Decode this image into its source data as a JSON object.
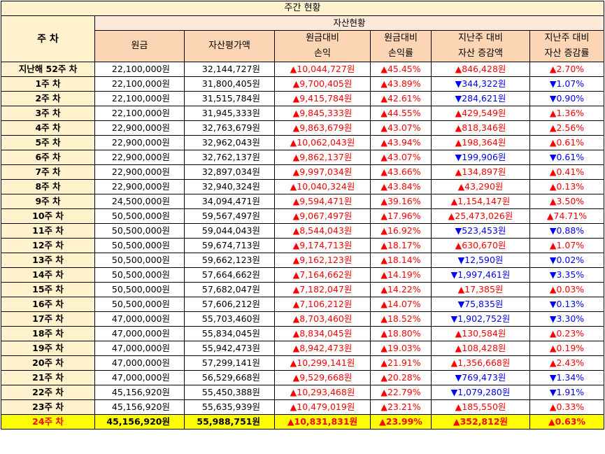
{
  "title": "주간 현황",
  "header": {
    "week_label": "주 차",
    "group_label": "자산현황",
    "columns": [
      {
        "line1": "원금",
        "line2": ""
      },
      {
        "line1": "자산평가액",
        "line2": ""
      },
      {
        "line1": "원금대비",
        "line2": "손익"
      },
      {
        "line1": "원금대비",
        "line2": "손익률"
      },
      {
        "line1": "지난주 대비",
        "line2": "자산 증감액"
      },
      {
        "line1": "지난주 대비",
        "line2": "자산 증감률"
      }
    ]
  },
  "rows": [
    {
      "week": "지난해 52주 차",
      "principal": "22,100,000원",
      "value": "32,144,727원",
      "pl": "▲10,044,727원",
      "plr": "▲45.45%",
      "chg": "▲846,428원",
      "chgr": "▲2.70%",
      "pl_dir": "up",
      "chg_dir": "up"
    },
    {
      "week": "1주 차",
      "principal": "22,100,000원",
      "value": "31,800,405원",
      "pl": "▲9,700,405원",
      "plr": "▲43.89%",
      "chg": "▼344,322원",
      "chgr": "▼1.07%",
      "pl_dir": "up",
      "chg_dir": "down"
    },
    {
      "week": "2주 차",
      "principal": "22,100,000원",
      "value": "31,515,784원",
      "pl": "▲9,415,784원",
      "plr": "▲42.61%",
      "chg": "▼284,621원",
      "chgr": "▼0.90%",
      "pl_dir": "up",
      "chg_dir": "down"
    },
    {
      "week": "3주 차",
      "principal": "22,100,000원",
      "value": "31,945,333원",
      "pl": "▲9,845,333원",
      "plr": "▲44.55%",
      "chg": "▲429,549원",
      "chgr": "▲1.36%",
      "pl_dir": "up",
      "chg_dir": "up"
    },
    {
      "week": "4주 차",
      "principal": "22,900,000원",
      "value": "32,763,679원",
      "pl": "▲9,863,679원",
      "plr": "▲43.07%",
      "chg": "▲818,346원",
      "chgr": "▲2.56%",
      "pl_dir": "up",
      "chg_dir": "up"
    },
    {
      "week": "5주 차",
      "principal": "22,900,000원",
      "value": "32,962,043원",
      "pl": "▲10,062,043원",
      "plr": "▲43.94%",
      "chg": "▲198,364원",
      "chgr": "▲0.61%",
      "pl_dir": "up",
      "chg_dir": "up"
    },
    {
      "week": "6주 차",
      "principal": "22,900,000원",
      "value": "32,762,137원",
      "pl": "▲9,862,137원",
      "plr": "▲43.07%",
      "chg": "▼199,906원",
      "chgr": "▼0.61%",
      "pl_dir": "up",
      "chg_dir": "down"
    },
    {
      "week": "7주 차",
      "principal": "22,900,000원",
      "value": "32,897,034원",
      "pl": "▲9,997,034원",
      "plr": "▲43.66%",
      "chg": "▲134,897원",
      "chgr": "▲0.41%",
      "pl_dir": "up",
      "chg_dir": "up"
    },
    {
      "week": "8주 차",
      "principal": "22,900,000원",
      "value": "32,940,324원",
      "pl": "▲10,040,324원",
      "plr": "▲43.84%",
      "chg": "▲43,290원",
      "chgr": "▲0.13%",
      "pl_dir": "up",
      "chg_dir": "up"
    },
    {
      "week": "9주 차",
      "principal": "24,500,000원",
      "value": "34,094,471원",
      "pl": "▲9,594,471원",
      "plr": "▲39.16%",
      "chg": "▲1,154,147원",
      "chgr": "▲3.50%",
      "pl_dir": "up",
      "chg_dir": "up"
    },
    {
      "week": "10주 차",
      "principal": "50,500,000원",
      "value": "59,567,497원",
      "pl": "▲9,067,497원",
      "plr": "▲17.96%",
      "chg": "▲25,473,026원",
      "chgr": "▲74.71%",
      "pl_dir": "up",
      "chg_dir": "up"
    },
    {
      "week": "11주 차",
      "principal": "50,500,000원",
      "value": "59,044,043원",
      "pl": "▲8,544,043원",
      "plr": "▲16.92%",
      "chg": "▼523,453원",
      "chgr": "▼0.88%",
      "pl_dir": "up",
      "chg_dir": "down"
    },
    {
      "week": "12주 차",
      "principal": "50,500,000원",
      "value": "59,674,713원",
      "pl": "▲9,174,713원",
      "plr": "▲18.17%",
      "chg": "▲630,670원",
      "chgr": "▲1.07%",
      "pl_dir": "up",
      "chg_dir": "up"
    },
    {
      "week": "13주 차",
      "principal": "50,500,000원",
      "value": "59,662,123원",
      "pl": "▲9,162,123원",
      "plr": "▲18.14%",
      "chg": "▼12,590원",
      "chgr": "▼0.02%",
      "pl_dir": "up",
      "chg_dir": "down"
    },
    {
      "week": "14주 차",
      "principal": "50,500,000원",
      "value": "57,664,662원",
      "pl": "▲7,164,662원",
      "plr": "▲14.19%",
      "chg": "▼1,997,461원",
      "chgr": "▼3.35%",
      "pl_dir": "up",
      "chg_dir": "down"
    },
    {
      "week": "15주 차",
      "principal": "50,500,000원",
      "value": "57,682,047원",
      "pl": "▲7,182,047원",
      "plr": "▲14.22%",
      "chg": "▲17,385원",
      "chgr": "▲0.03%",
      "pl_dir": "up",
      "chg_dir": "up"
    },
    {
      "week": "16주 차",
      "principal": "50,500,000원",
      "value": "57,606,212원",
      "pl": "▲7,106,212원",
      "plr": "▲14.07%",
      "chg": "▼75,835원",
      "chgr": "▼0.13%",
      "pl_dir": "up",
      "chg_dir": "down"
    },
    {
      "week": "17주 차",
      "principal": "47,000,000원",
      "value": "55,703,460원",
      "pl": "▲8,703,460원",
      "plr": "▲18.52%",
      "chg": "▼1,902,752원",
      "chgr": "▼3.30%",
      "pl_dir": "up",
      "chg_dir": "down"
    },
    {
      "week": "18주 차",
      "principal": "47,000,000원",
      "value": "55,834,045원",
      "pl": "▲8,834,045원",
      "plr": "▲18.80%",
      "chg": "▲130,584원",
      "chgr": "▲0.23%",
      "pl_dir": "up",
      "chg_dir": "up"
    },
    {
      "week": "19주 차",
      "principal": "47,000,000원",
      "value": "55,942,473원",
      "pl": "▲8,942,473원",
      "plr": "▲19.03%",
      "chg": "▲108,428원",
      "chgr": "▲0.19%",
      "pl_dir": "up",
      "chg_dir": "up"
    },
    {
      "week": "20주 차",
      "principal": "47,000,000원",
      "value": "57,299,141원",
      "pl": "▲10,299,141원",
      "plr": "▲21.91%",
      "chg": "▲1,356,668원",
      "chgr": "▲2.43%",
      "pl_dir": "up",
      "chg_dir": "up"
    },
    {
      "week": "21주 차",
      "principal": "47,000,000원",
      "value": "56,529,668원",
      "pl": "▲9,529,668원",
      "plr": "▲20.28%",
      "chg": "▼769,473원",
      "chgr": "▼1.34%",
      "pl_dir": "up",
      "chg_dir": "down"
    },
    {
      "week": "22주 차",
      "principal": "45,156,920원",
      "value": "55,450,388원",
      "pl": "▲10,293,468원",
      "plr": "▲22.79%",
      "chg": "▼1,079,280원",
      "chgr": "▼1.91%",
      "pl_dir": "up",
      "chg_dir": "down"
    },
    {
      "week": "23주 차",
      "principal": "45,156,920원",
      "value": "55,635,939원",
      "pl": "▲10,479,019원",
      "plr": "▲23.21%",
      "chg": "▲185,550원",
      "chgr": "▲0.33%",
      "pl_dir": "up",
      "chg_dir": "up"
    },
    {
      "week": "24주 차",
      "principal": "45,156,920원",
      "value": "55,988,751원",
      "pl": "▲10,831,831원",
      "plr": "▲23.99%",
      "chg": "▲352,812원",
      "chgr": "▲0.63%",
      "pl_dir": "up",
      "chg_dir": "up"
    }
  ],
  "colors": {
    "up": "#ff0000",
    "down": "#0000ff",
    "header_light": "#fff2cc",
    "header_column": "#fcd5b4",
    "highlight_row": "#ffff00"
  }
}
